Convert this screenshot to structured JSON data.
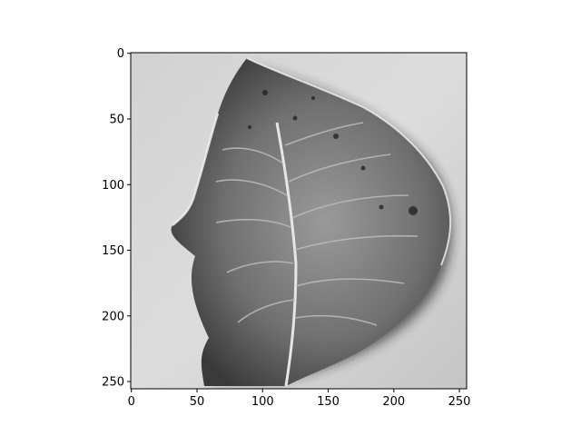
{
  "chart_data": {
    "type": "heatmap",
    "subtype": "grayscale image (imshow)",
    "title": "",
    "xlabel": "",
    "ylabel": "",
    "image_shape": [
      256,
      256
    ],
    "colormap": "gray",
    "xlim": [
      0,
      255
    ],
    "ylim": [
      255,
      0
    ],
    "y_axis_inverted": true,
    "grid": false,
    "x_ticks": [
      0,
      50,
      100,
      150,
      200,
      250
    ],
    "y_ticks": [
      0,
      50,
      100,
      150,
      200,
      250
    ],
    "x_tick_labels": [
      "0",
      "50",
      "100",
      "150",
      "200",
      "250"
    ],
    "y_tick_labels": [
      "0",
      "50",
      "100",
      "150",
      "200",
      "250"
    ],
    "image_subject": "leaf"
  }
}
